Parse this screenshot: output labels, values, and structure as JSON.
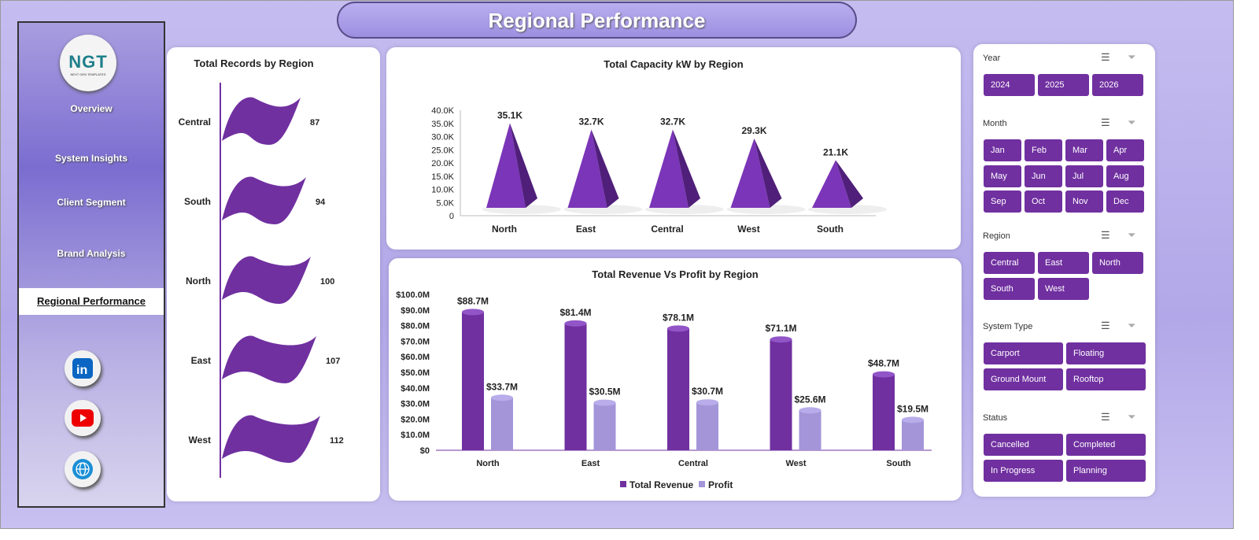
{
  "title": "Regional Performance",
  "logo": {
    "text": "NGT",
    "sub": "NEXT GEN TEMPLATES"
  },
  "nav": [
    "Overview",
    "System Insights",
    "Client Segment",
    "Brand Analysis",
    "Regional Performance"
  ],
  "active_nav": "Regional Performance",
  "social": [
    "linkedin-icon",
    "youtube-icon",
    "globe-icon"
  ],
  "colors": {
    "primary": "#7030a0",
    "secondary": "#a395d8",
    "background": "#b8aee8"
  },
  "chart_data": [
    {
      "type": "bar",
      "title": "Total Records by Region",
      "categories": [
        "Central",
        "South",
        "North",
        "East",
        "West"
      ],
      "values": [
        87,
        94,
        100,
        107,
        112
      ],
      "orientation": "horizontal"
    },
    {
      "type": "bar",
      "title": "Total Capacity kW by Region",
      "categories": [
        "North",
        "East",
        "Central",
        "West",
        "South"
      ],
      "values": [
        35.1,
        32.7,
        32.7,
        29.3,
        21.1
      ],
      "data_labels": [
        "35.1K",
        "32.7K",
        "32.7K",
        "29.3K",
        "21.1K"
      ],
      "yticks": [
        "0",
        "5.0K",
        "10.0K",
        "15.0K",
        "20.0K",
        "25.0K",
        "30.0K",
        "35.0K",
        "40.0K"
      ],
      "ylim": [
        0,
        40
      ]
    },
    {
      "type": "bar",
      "title": "Total Revenue Vs  Profit by Region",
      "categories": [
        "North",
        "East",
        "Central",
        "West",
        "South"
      ],
      "series": [
        {
          "name": "Total Revenue",
          "values": [
            88.7,
            81.4,
            78.1,
            71.1,
            48.7
          ],
          "labels": [
            "$88.7M",
            "$81.4M",
            "$78.1M",
            "$71.1M",
            "$48.7M"
          ]
        },
        {
          "name": "Profit",
          "values": [
            33.7,
            30.5,
            30.7,
            25.6,
            19.5
          ],
          "labels": [
            "$33.7M",
            "$30.5M",
            "$30.7M",
            "$25.6M",
            "$19.5M"
          ]
        }
      ],
      "yticks": [
        "$0",
        "$10.0M",
        "$20.0M",
        "$30.0M",
        "$40.0M",
        "$50.0M",
        "$60.0M",
        "$70.0M",
        "$80.0M",
        "$90.0M",
        "$100.0M"
      ],
      "ylim": [
        0,
        100
      ],
      "legend": "bottom"
    }
  ],
  "slicers": [
    {
      "label": "Year",
      "items": [
        "2024",
        "2025",
        "2026"
      ]
    },
    {
      "label": "Month",
      "items": [
        "Jan",
        "Feb",
        "Mar",
        "Apr",
        "May",
        "Jun",
        "Jul",
        "Aug",
        "Sep",
        "Oct",
        "Nov",
        "Dec"
      ]
    },
    {
      "label": "Region",
      "items": [
        "Central",
        "East",
        "North",
        "South",
        "West"
      ]
    },
    {
      "label": "System Type",
      "items": [
        "Carport",
        "Floating",
        "Ground Mount",
        "Rooftop"
      ]
    },
    {
      "label": "Status",
      "items": [
        "Cancelled",
        "Completed",
        "In Progress",
        "Planning"
      ]
    }
  ]
}
